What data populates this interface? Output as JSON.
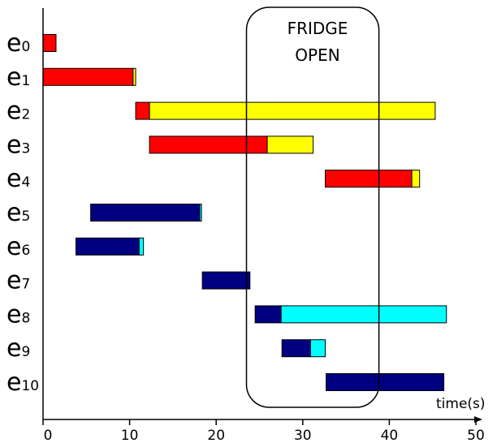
{
  "chart_data": {
    "type": "gantt",
    "title": "",
    "xlabel": "time(s)",
    "ylabel": "",
    "xlim": [
      0,
      50
    ],
    "x_ticks": [
      0,
      10,
      20,
      30,
      40,
      50
    ],
    "grid": false,
    "colors": {
      "red": "#ff0000",
      "yellow": "#ffff00",
      "navy": "#000080",
      "cyan": "#00ffff"
    },
    "annotation": {
      "lines": [
        "FRIDGE",
        "OPEN"
      ],
      "x_range": [
        23.5,
        38.8
      ]
    },
    "rows": [
      {
        "base": "e",
        "sub": "0",
        "segments": [
          {
            "start": 0,
            "end": 1.5,
            "color": "red"
          }
        ]
      },
      {
        "base": "e",
        "sub": "1",
        "segments": [
          {
            "start": 0,
            "end": 10.4,
            "color": "red"
          },
          {
            "start": 10.4,
            "end": 10.7,
            "color": "yellow"
          }
        ]
      },
      {
        "base": "e",
        "sub": "2",
        "segments": [
          {
            "start": 10.7,
            "end": 12.3,
            "color": "red"
          },
          {
            "start": 12.3,
            "end": 45.3,
            "color": "yellow"
          }
        ]
      },
      {
        "base": "e",
        "sub": "3",
        "segments": [
          {
            "start": 12.3,
            "end": 25.9,
            "color": "red"
          },
          {
            "start": 25.9,
            "end": 31.2,
            "color": "yellow"
          }
        ]
      },
      {
        "base": "e",
        "sub": "4",
        "segments": [
          {
            "start": 32.6,
            "end": 42.6,
            "color": "red"
          },
          {
            "start": 42.6,
            "end": 43.5,
            "color": "yellow"
          }
        ]
      },
      {
        "base": "e",
        "sub": "5",
        "segments": [
          {
            "start": 5.5,
            "end": 18.1,
            "color": "navy"
          },
          {
            "start": 18.1,
            "end": 18.3,
            "color": "cyan"
          }
        ]
      },
      {
        "base": "e",
        "sub": "6",
        "segments": [
          {
            "start": 3.8,
            "end": 11.1,
            "color": "navy"
          },
          {
            "start": 11.1,
            "end": 11.6,
            "color": "cyan"
          }
        ]
      },
      {
        "base": "e",
        "sub": "7",
        "segments": [
          {
            "start": 18.4,
            "end": 23.9,
            "color": "navy"
          }
        ]
      },
      {
        "base": "e",
        "sub": "8",
        "segments": [
          {
            "start": 24.5,
            "end": 27.5,
            "color": "navy"
          },
          {
            "start": 27.5,
            "end": 46.6,
            "color": "cyan"
          }
        ]
      },
      {
        "base": "e",
        "sub": "9",
        "segments": [
          {
            "start": 27.6,
            "end": 30.9,
            "color": "navy"
          },
          {
            "start": 30.9,
            "end": 32.6,
            "color": "cyan"
          }
        ]
      },
      {
        "base": "e",
        "sub": "10",
        "segments": [
          {
            "start": 32.7,
            "end": 46.3,
            "color": "navy"
          }
        ]
      }
    ]
  }
}
